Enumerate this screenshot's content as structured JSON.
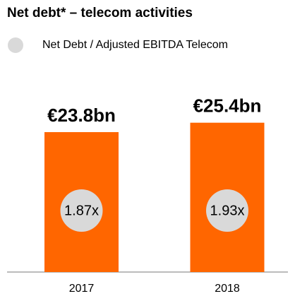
{
  "chart_data": {
    "type": "bar",
    "title": "Net debt* – telecom activities",
    "categories": [
      "2017",
      "2018"
    ],
    "values": [
      23.8,
      25.4
    ],
    "value_labels": [
      "€23.8bn",
      "€25.4bn"
    ],
    "color": "#ff6600",
    "series": [
      {
        "name": "Net Debt / Adjusted EBITDA Telecom",
        "color": "#d9d9d9",
        "values": [
          1.87,
          1.93
        ],
        "value_labels": [
          "1.87x",
          "1.93x"
        ]
      }
    ]
  }
}
